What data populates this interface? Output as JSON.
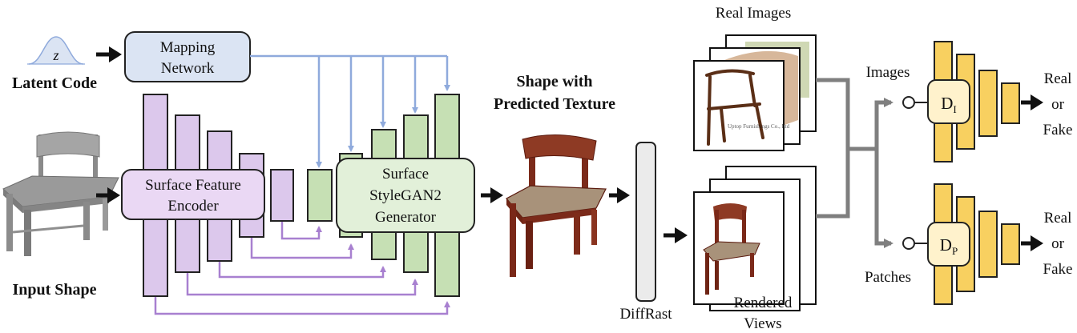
{
  "latent": {
    "symbol": "z",
    "label": "Latent Code"
  },
  "mapping": {
    "line1": "Mapping",
    "line2": "Network"
  },
  "input_shape": {
    "label": "Input Shape"
  },
  "encoder": {
    "line1": "Surface Feature",
    "line2": "Encoder"
  },
  "generator": {
    "line1": "Surface",
    "line2": "StyleGAN2",
    "line3": "Generator"
  },
  "textured": {
    "line1": "Shape with",
    "line2": "Predicted Texture"
  },
  "diffrast": {
    "label": "DiffRast"
  },
  "real_images": {
    "label": "Real Images",
    "watermark": "Uptop Furnishings Co., Ltd"
  },
  "rendered": {
    "line1": "Rendered",
    "line2": "Views"
  },
  "images_label": "Images",
  "patches_label": "Patches",
  "disc_image": {
    "main": "D",
    "sub": "I"
  },
  "disc_patch": {
    "main": "D",
    "sub": "P"
  },
  "output_top": {
    "line1": "Real",
    "line2": "or",
    "line3": "Fake"
  },
  "output_bottom": {
    "line1": "Real",
    "line2": "or",
    "line3": "Fake"
  },
  "colors": {
    "encoder_fill": "#dcc8ec",
    "encoder_stroke": "#222222",
    "generator_fill": "#c6e0b4",
    "mapping_fill": "#dbe4f3",
    "disc_fill": "#f8d060",
    "disc_box": "#fff2cc",
    "blue_line": "#8faadc",
    "purple_line": "#a880d0",
    "gray_line": "#7f7f7f",
    "diffrast_fill": "#ebebeb"
  }
}
